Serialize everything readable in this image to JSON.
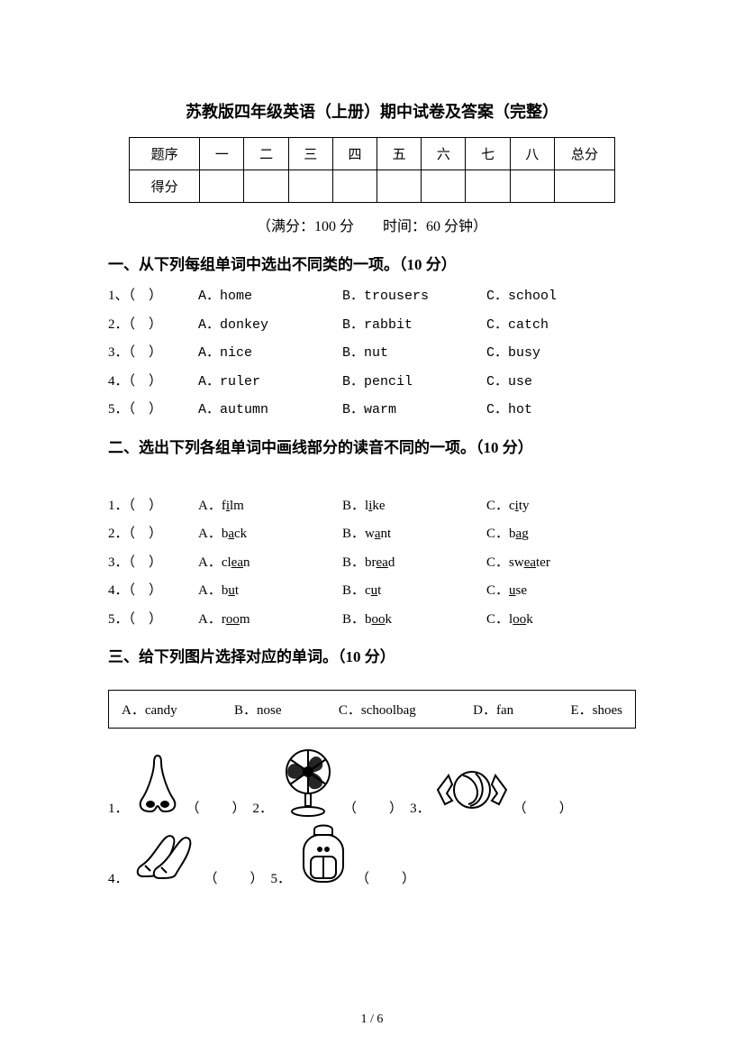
{
  "title": "苏教版四年级英语（上册）期中试卷及答案（完整）",
  "score_table": {
    "col_labels": [
      "题序",
      "一",
      "二",
      "三",
      "四",
      "五",
      "六",
      "七",
      "八",
      "总分"
    ],
    "row2_label": "得分"
  },
  "subtitle": "（满分：100 分　　时间：60 分钟）",
  "sections": {
    "one": {
      "heading": "一、从下列每组单词中选出不同类的一项。（10 分）",
      "rows": [
        {
          "n": "1、（　）",
          "a": "A．home",
          "b": "B．trousers",
          "c": "C．school"
        },
        {
          "n": "2．（　）",
          "a": "A．donkey",
          "b": "B．rabbit",
          "c": "C．catch"
        },
        {
          "n": "3．（　）",
          "a": "A．nice",
          "b": "B．nut",
          "c": "C．busy"
        },
        {
          "n": "4．（　）",
          "a": "A．ruler",
          "b": "B．pencil",
          "c": "C．use"
        },
        {
          "n": "5．（　）",
          "a": "A．autumn",
          "b": "B．warm",
          "c": "C．hot"
        }
      ]
    },
    "two": {
      "heading": "二、选出下列各组单词中画线部分的读音不同的一项。（10 分）",
      "rows": [
        {
          "n": "1．（　）",
          "a_pre": "A．f",
          "a_u": "i",
          "a_post": "lm",
          "b_pre": "B．l",
          "b_u": "i",
          "b_post": "ke",
          "c_pre": "C．c",
          "c_u": "i",
          "c_post": "ty"
        },
        {
          "n": "2．（　）",
          "a_pre": "A．b",
          "a_u": "a",
          "a_post": "ck",
          "b_pre": "B．w",
          "b_u": "a",
          "b_post": "nt",
          "c_pre": "C．b",
          "c_u": "a",
          "c_post": "g"
        },
        {
          "n": "3．（　）",
          "a_pre": "A．cl",
          "a_u": "ea",
          "a_post": "n",
          "b_pre": "B．br",
          "b_u": "ea",
          "b_post": "d",
          "c_pre": "C．sw",
          "c_u": "ea",
          "c_post": "ter"
        },
        {
          "n": "4．（　）",
          "a_pre": "A．b",
          "a_u": "u",
          "a_post": "t",
          "b_pre": "B．c",
          "b_u": "u",
          "b_post": "t",
          "c_pre": "C．",
          "c_u": "u",
          "c_post": "se"
        },
        {
          "n": "5．（　）",
          "a_pre": "A．r",
          "a_u": "oo",
          "a_post": "m",
          "b_pre": "B．b",
          "b_u": "oo",
          "b_post": "k",
          "c_pre": "C．l",
          "c_u": "oo",
          "c_post": "k"
        }
      ]
    },
    "three": {
      "heading": "三、给下列图片选择对应的单词。（10 分）",
      "options": {
        "a": "A．candy",
        "b": "B．nose",
        "c": "C．schoolbag",
        "d": "D．fan",
        "e": "E．shoes"
      },
      "pics": {
        "p1": "1．",
        "p2": "2．",
        "p3": "3．",
        "p4": "4．",
        "p5": "5．",
        "blank": "（　　）"
      }
    }
  },
  "footer": "1 / 6",
  "colors": {
    "text": "#000000",
    "bg": "#ffffff",
    "border": "#000000"
  }
}
